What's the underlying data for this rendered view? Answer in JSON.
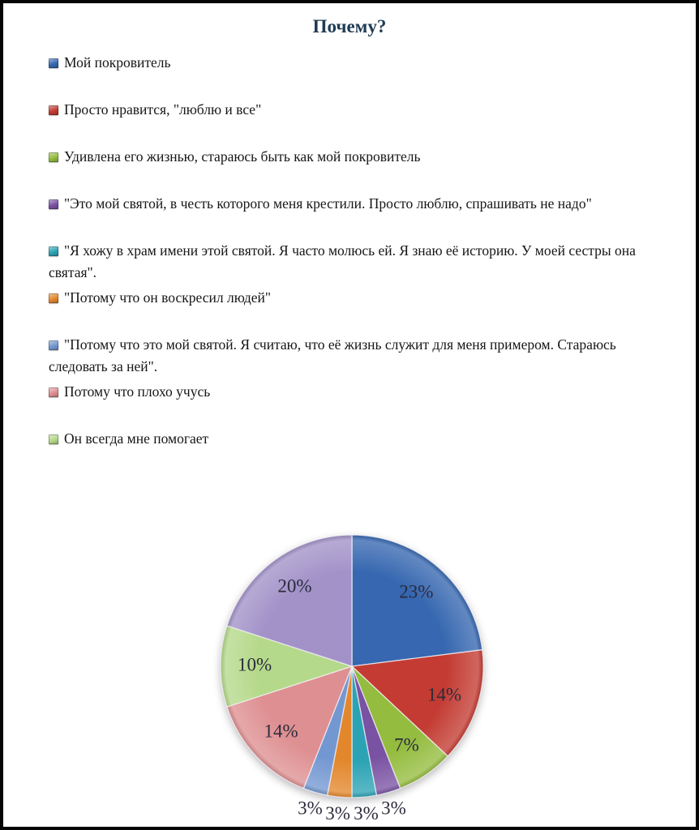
{
  "page": {
    "title": "Почему?"
  },
  "legend": {
    "items": [
      {
        "label": "Мой покровитель",
        "color": "#3667B0"
      },
      {
        "label": "Просто нравится, \"люблю и все\"",
        "color": "#C33B32"
      },
      {
        "label": "Удивлена его жизнью, стараюсь быть как мой покровитель",
        "color": "#94BC3F"
      },
      {
        "label": "\"Это мой святой, в честь которого меня крестили. Просто люблю, спрашивать не надо\"",
        "color": "#7A52A3"
      },
      {
        "label": "\"Я хожу в храм имени этой святой. Я часто молюсь ей. Я знаю её историю. У моей сестры она святая\".",
        "color": "#2BA3B4"
      },
      {
        "label": "\"Потому что он воскресил людей\"",
        "color": "#E3872D"
      },
      {
        "label": "\"Потому что это мой святой. Я считаю, что её жизнь служит для меня примером. Стараюсь следовать за ней\".",
        "color": "#7397D1"
      },
      {
        "label": "Потому что плохо учусь",
        "color": "#DE8F91"
      },
      {
        "label": "Он всегда мне помогает",
        "color": "#B5D98A"
      }
    ]
  },
  "chart_data": {
    "type": "pie",
    "title": "Почему?",
    "labels": [
      "Мой покровитель",
      "Просто нравится, \"люблю и все\"",
      "Удивлена его жизнью, стараюсь быть как мой покровитель",
      "\"Это мой святой, в честь которого меня крестили. Просто люблю, спрашивать не надо\"",
      "\"Я хожу в храм имени этой святой. Я часто молюсь ей. Я знаю её историю. У моей сестры она святая\".",
      "\"Потому что он воскресил людей\"",
      "\"Потому что это мой святой. Я считаю, что её жизнь служит для меня примером. Стараюсь следовать за ней\".",
      "Потому что плохо учусь",
      "Он всегда мне помогает",
      ""
    ],
    "values": [
      23,
      14,
      7,
      3,
      3,
      3,
      3,
      14,
      10,
      20
    ],
    "data_labels": [
      "23%",
      "14%",
      "7%",
      "3%",
      "3%",
      "3%",
      "3%",
      "14%",
      "10%",
      "20%"
    ],
    "colors": [
      "#3667B0",
      "#C33B32",
      "#94BC3F",
      "#7A52A3",
      "#2BA3B4",
      "#E3872D",
      "#7397D1",
      "#DE8F91",
      "#B5D98A",
      "#A292C8"
    ],
    "start_angle_deg": 0,
    "direction": "clockwise",
    "legend_position": "top-left-vertical",
    "note_colors": {
      "title_color": "#1f3b53",
      "label_color": "#2b2b3c"
    }
  }
}
